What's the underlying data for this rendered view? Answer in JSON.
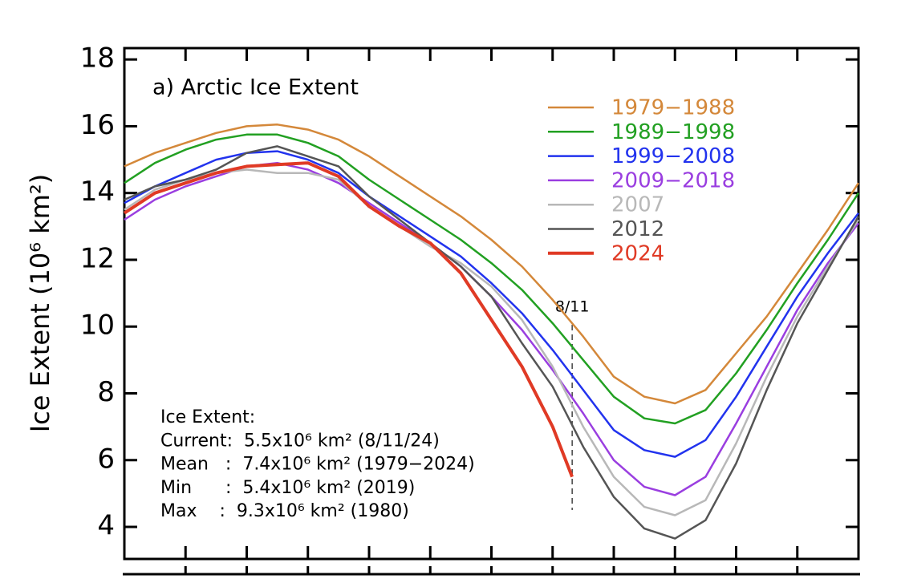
{
  "chart_data": {
    "type": "line",
    "title": "a) Arctic Ice Extent",
    "ylabel": "Ice Extent (10⁶ km²)",
    "x": [
      0,
      0.5,
      1,
      1.5,
      2,
      2.5,
      3,
      3.5,
      4,
      4.5,
      5,
      5.5,
      6,
      6.5,
      7,
      7.5,
      8,
      8.5,
      9,
      9.5,
      10,
      10.5,
      11,
      11.5,
      12
    ],
    "xlim": [
      0,
      12
    ],
    "xticks": [
      1,
      2,
      3,
      4,
      5,
      6,
      7,
      8,
      9,
      10,
      11
    ],
    "ylim": [
      3.04,
      18.34
    ],
    "yticks": [
      4,
      6,
      8,
      10,
      12,
      14,
      16,
      18
    ],
    "legend": "upper right",
    "series": [
      {
        "name": "1979−1988",
        "color": "#d4883a",
        "values": [
          14.8,
          15.2,
          15.5,
          15.8,
          16.0,
          16.05,
          15.9,
          15.6,
          15.1,
          14.5,
          13.9,
          13.3,
          12.6,
          11.8,
          10.8,
          9.7,
          8.5,
          7.9,
          7.7,
          8.1,
          9.2,
          10.3,
          11.6,
          12.9,
          14.3
        ]
      },
      {
        "name": "1989−1998",
        "color": "#22a022",
        "values": [
          14.3,
          14.9,
          15.3,
          15.6,
          15.75,
          15.75,
          15.5,
          15.1,
          14.4,
          13.8,
          13.2,
          12.6,
          11.9,
          11.1,
          10.1,
          9.0,
          7.9,
          7.25,
          7.1,
          7.5,
          8.6,
          9.9,
          11.3,
          12.6,
          14.0
        ]
      },
      {
        "name": "1999−2008",
        "color": "#2233ee",
        "values": [
          13.7,
          14.2,
          14.6,
          15.0,
          15.2,
          15.25,
          15.0,
          14.6,
          13.9,
          13.3,
          12.7,
          12.1,
          11.3,
          10.4,
          9.3,
          8.1,
          6.9,
          6.3,
          6.1,
          6.6,
          7.9,
          9.4,
          10.9,
          12.2,
          13.4
        ]
      },
      {
        "name": "2009−2018",
        "color": "#9a3ee0",
        "values": [
          13.2,
          13.8,
          14.2,
          14.5,
          14.8,
          14.9,
          14.7,
          14.3,
          13.7,
          13.1,
          12.5,
          11.8,
          10.9,
          9.9,
          8.7,
          7.4,
          6.0,
          5.2,
          4.95,
          5.5,
          7.1,
          8.8,
          10.5,
          11.9,
          13.1
        ]
      },
      {
        "name": "2007",
        "color": "#b8b8b8",
        "values": [
          13.5,
          14.1,
          14.4,
          14.6,
          14.7,
          14.6,
          14.6,
          14.4,
          13.6,
          13.0,
          12.4,
          11.9,
          11.2,
          10.2,
          8.8,
          7.0,
          5.5,
          4.6,
          4.35,
          4.8,
          6.5,
          8.5,
          10.3,
          11.8,
          13.2
        ]
      },
      {
        "name": "2012",
        "color": "#555555",
        "values": [
          13.8,
          14.2,
          14.4,
          14.7,
          15.2,
          15.4,
          15.1,
          14.8,
          13.9,
          13.2,
          12.5,
          11.8,
          10.9,
          9.5,
          8.2,
          6.4,
          4.9,
          3.95,
          3.65,
          4.2,
          5.9,
          8.1,
          10.1,
          11.7,
          13.3
        ]
      },
      {
        "name": "2024",
        "color": "#e03a25",
        "x": [
          0,
          0.5,
          1,
          1.5,
          2,
          2.5,
          3,
          3.5,
          4,
          4.5,
          5,
          5.5,
          6,
          6.5,
          7,
          7.32
        ],
        "values": [
          13.4,
          14.0,
          14.3,
          14.6,
          14.8,
          14.85,
          14.9,
          14.5,
          13.6,
          13.0,
          12.5,
          11.6,
          10.2,
          8.8,
          7.0,
          5.5
        ]
      }
    ],
    "marker": {
      "x": 7.32,
      "label": "8/11"
    },
    "info": [
      "Ice Extent:",
      "Current:  5.5x10⁶ km² (8/11/24)",
      "Mean   :  7.4x10⁶ km² (1979−2024)",
      "Min      :  5.4x10⁶ km² (2019)",
      "Max    :  9.3x10⁶ km² (1980)"
    ]
  }
}
